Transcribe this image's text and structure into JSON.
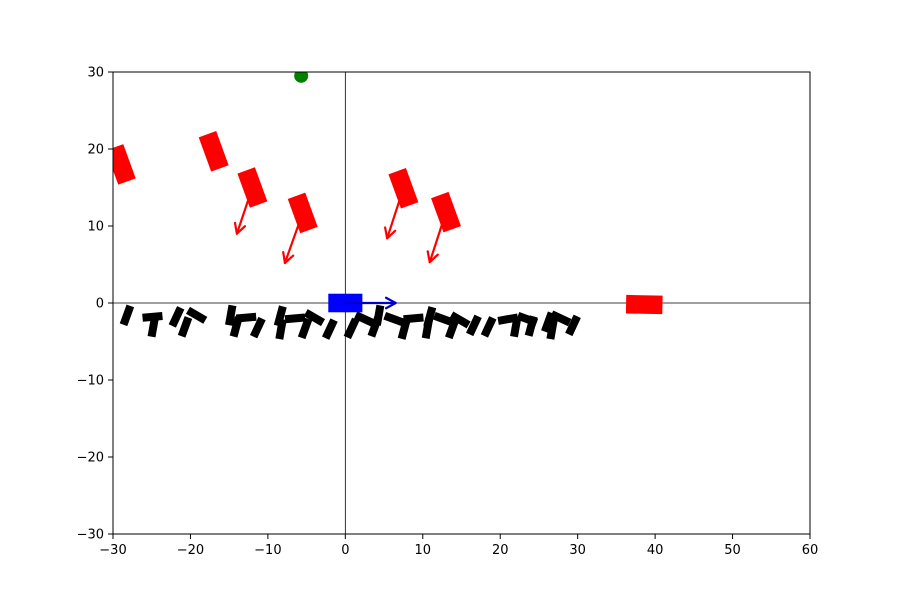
{
  "chart_data": {
    "type": "scatter",
    "title": "",
    "xlabel": "",
    "ylabel": "",
    "xlim": [
      -30,
      60
    ],
    "ylim": [
      -30,
      30
    ],
    "xticks": [
      -30,
      -20,
      -10,
      0,
      10,
      20,
      30,
      40,
      50,
      60
    ],
    "yticks": [
      -30,
      -20,
      -10,
      0,
      10,
      20,
      30
    ],
    "xtick_labels": [
      "−30",
      "−20",
      "−10",
      "0",
      "10",
      "20",
      "30",
      "40",
      "50",
      "60"
    ],
    "ytick_labels": [
      "−30",
      "−20",
      "−10",
      "0",
      "10",
      "20",
      "30"
    ],
    "grid": false,
    "reference_lines": {
      "x": 0,
      "y": 0
    },
    "colors": {
      "ego": "#0000ff",
      "vehicles": "#ff0000",
      "obstacles": "#000000",
      "goal": "#008000",
      "axes": "#000000"
    },
    "ego_vehicle": {
      "x": 0,
      "y": 0,
      "heading_deg": 0,
      "velocity": {
        "dx": 6.5,
        "dy": 0
      }
    },
    "goal_point": {
      "x": -5.7,
      "y": 29.5
    },
    "red_vehicles": [
      {
        "x": -29,
        "y": 18,
        "heading_deg": 110,
        "velocity": null
      },
      {
        "x": -17,
        "y": 19.7,
        "heading_deg": 110,
        "velocity": null
      },
      {
        "x": -12,
        "y": 15,
        "heading_deg": 110,
        "velocity": {
          "dx": -2,
          "dy": -6
        }
      },
      {
        "x": -5.5,
        "y": 11.7,
        "heading_deg": 110,
        "velocity": {
          "dx": -2.3,
          "dy": -6.5
        }
      },
      {
        "x": 7.5,
        "y": 14.9,
        "heading_deg": 110,
        "velocity": {
          "dx": -2.1,
          "dy": -6.5
        }
      },
      {
        "x": 13,
        "y": 11.8,
        "heading_deg": 110,
        "velocity": {
          "dx": -2.1,
          "dy": -6.5
        }
      },
      {
        "x": 38.6,
        "y": -0.2,
        "heading_deg": -1,
        "velocity": null
      }
    ],
    "black_obstacles": [
      {
        "x": -28.2,
        "y": -1.6,
        "angle": 70
      },
      {
        "x": -24.9,
        "y": -1.8,
        "angle": 5
      },
      {
        "x": -24.8,
        "y": -3.1,
        "angle": 80
      },
      {
        "x": -21.8,
        "y": -1.8,
        "angle": 65
      },
      {
        "x": -20.7,
        "y": -3.1,
        "angle": 70
      },
      {
        "x": -19.2,
        "y": -1.6,
        "angle": -30
      },
      {
        "x": -14.8,
        "y": -1.6,
        "angle": 80
      },
      {
        "x": -14.1,
        "y": -3.1,
        "angle": 75
      },
      {
        "x": -12.8,
        "y": -1.9,
        "angle": 5
      },
      {
        "x": -11.3,
        "y": -3.2,
        "angle": 65
      },
      {
        "x": -8.4,
        "y": -1.7,
        "angle": 75
      },
      {
        "x": -8.3,
        "y": -3.4,
        "angle": 80
      },
      {
        "x": -6.5,
        "y": -2.0,
        "angle": 5
      },
      {
        "x": -5.2,
        "y": -3.3,
        "angle": 70
      },
      {
        "x": -4.0,
        "y": -1.9,
        "angle": -30
      },
      {
        "x": -2.0,
        "y": -3.4,
        "angle": 65
      },
      {
        "x": 0.8,
        "y": -3.3,
        "angle": 65
      },
      {
        "x": 2.5,
        "y": -2.1,
        "angle": -25
      },
      {
        "x": 3.8,
        "y": -3.1,
        "angle": 70
      },
      {
        "x": 4.3,
        "y": -1.6,
        "angle": 80
      },
      {
        "x": 6.3,
        "y": -2.1,
        "angle": -20
      },
      {
        "x": 7.6,
        "y": -3.4,
        "angle": 75
      },
      {
        "x": 8.8,
        "y": -2.0,
        "angle": 5
      },
      {
        "x": 10.6,
        "y": -3.3,
        "angle": 80
      },
      {
        "x": 10.9,
        "y": -1.8,
        "angle": 75
      },
      {
        "x": 12.7,
        "y": -2.1,
        "angle": -20
      },
      {
        "x": 13.8,
        "y": -3.3,
        "angle": 70
      },
      {
        "x": 14.8,
        "y": -2.2,
        "angle": -30
      },
      {
        "x": 16.6,
        "y": -2.9,
        "angle": 65
      },
      {
        "x": 18.5,
        "y": -3.1,
        "angle": 65
      },
      {
        "x": 21.0,
        "y": -2.1,
        "angle": 10
      },
      {
        "x": 22.0,
        "y": -3.1,
        "angle": 80
      },
      {
        "x": 23.5,
        "y": -2.1,
        "angle": -20
      },
      {
        "x": 24.0,
        "y": -3.0,
        "angle": 75
      },
      {
        "x": 26.2,
        "y": -2.5,
        "angle": 70
      },
      {
        "x": 26.7,
        "y": -3.4,
        "angle": 80
      },
      {
        "x": 27.8,
        "y": -2.0,
        "angle": -25
      },
      {
        "x": 29.4,
        "y": -2.9,
        "angle": 65
      }
    ]
  }
}
